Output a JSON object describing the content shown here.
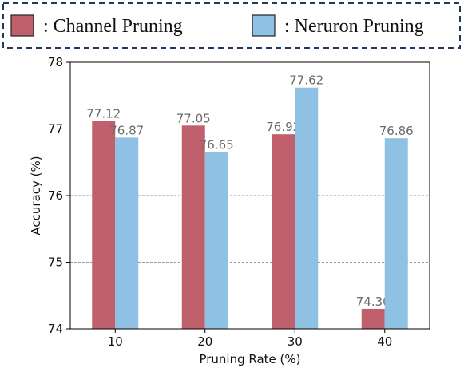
{
  "legend": {
    "items": [
      {
        "label": ": Channel Pruning",
        "color": "#c0606c"
      },
      {
        "label": ": Neruron Pruning",
        "color": "#8ec1e4"
      }
    ]
  },
  "chart_data": {
    "type": "bar",
    "xlabel": "Pruning Rate (%)",
    "ylabel": "Accuracy (%)",
    "categories": [
      "10",
      "20",
      "30",
      "40"
    ],
    "ylim": [
      74,
      78
    ],
    "yticks": [
      74,
      75,
      76,
      77,
      78
    ],
    "grid": "horizontal dashed",
    "series": [
      {
        "name": "Channel Pruning",
        "color": "#c0606c",
        "values": [
          77.12,
          77.05,
          76.92,
          74.3
        ],
        "labels": [
          "77.12",
          "77.05",
          "76.92",
          "74.30"
        ]
      },
      {
        "name": "Neruron Pruning",
        "color": "#8ec1e4",
        "values": [
          76.87,
          76.65,
          77.62,
          76.86
        ],
        "labels": [
          "76.87",
          "76.65",
          "77.62",
          "76.86"
        ]
      }
    ]
  }
}
